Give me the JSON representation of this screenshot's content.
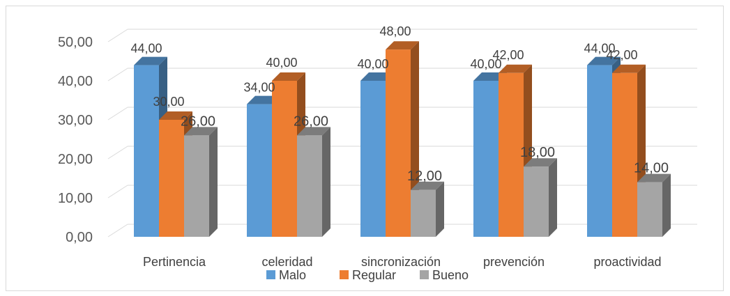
{
  "chart_data": {
    "type": "bar",
    "title": "",
    "xlabel": "",
    "ylabel": "",
    "ylim": [
      0,
      50
    ],
    "yticks": [
      "0,00",
      "10,00",
      "20,00",
      "30,00",
      "40,00",
      "50,00"
    ],
    "grid": true,
    "legend_position": "bottom",
    "style": "3d-clustered-column",
    "categories": [
      "Pertinencia",
      "celeridad",
      "sincronización",
      "prevención",
      "proactividad"
    ],
    "series": [
      {
        "name": "Malo",
        "color": "#5b9bd5",
        "values": [
          44,
          34,
          40,
          40,
          44
        ],
        "labels": [
          "44,00",
          "34,00",
          "40,00",
          "40,00",
          "44,00"
        ]
      },
      {
        "name": "Regular",
        "color": "#ed7d31",
        "values": [
          30,
          40,
          48,
          42,
          42
        ],
        "labels": [
          "30,00",
          "40,00",
          "48,00",
          "42,00",
          "42,00"
        ]
      },
      {
        "name": "Bueno",
        "color": "#a5a5a5",
        "values": [
          26,
          26,
          12,
          18,
          14
        ],
        "labels": [
          "26,00",
          "26,00",
          "12,00",
          "18,00",
          "14,00"
        ]
      }
    ]
  }
}
